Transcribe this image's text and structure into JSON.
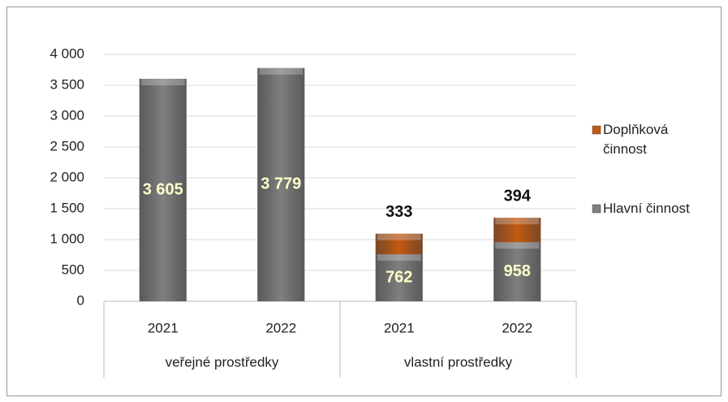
{
  "chart_data": {
    "type": "bar",
    "stacked": true,
    "categories": [
      "2021",
      "2022",
      "2021",
      "2022"
    ],
    "groups": [
      {
        "label": "veřejné prostředky",
        "size": 2
      },
      {
        "label": "vlastní prostředky",
        "size": 2
      }
    ],
    "series": [
      {
        "name": "Hlavní činnost",
        "color": "#7f7f7f",
        "values": [
          3605,
          3779,
          762,
          958
        ],
        "value_labels": [
          "3 605",
          "3 779",
          "762",
          "958"
        ]
      },
      {
        "name": "Doplňková činnost",
        "color": "#c55a11",
        "values": [
          null,
          null,
          333,
          394
        ],
        "value_labels": [
          null,
          null,
          "333",
          "394"
        ]
      }
    ],
    "ylim": [
      0,
      4000
    ],
    "yticks": [
      {
        "value": 0,
        "label": "0"
      },
      {
        "value": 500,
        "label": "500"
      },
      {
        "value": 1000,
        "label": "1 000"
      },
      {
        "value": 1500,
        "label": "1 500"
      },
      {
        "value": 2000,
        "label": "2 000"
      },
      {
        "value": 2500,
        "label": "2 500"
      },
      {
        "value": 3000,
        "label": "3 000"
      },
      {
        "value": 3500,
        "label": "3 500"
      },
      {
        "value": 4000,
        "label": "4 000"
      }
    ],
    "grid": true,
    "legend": "right"
  }
}
